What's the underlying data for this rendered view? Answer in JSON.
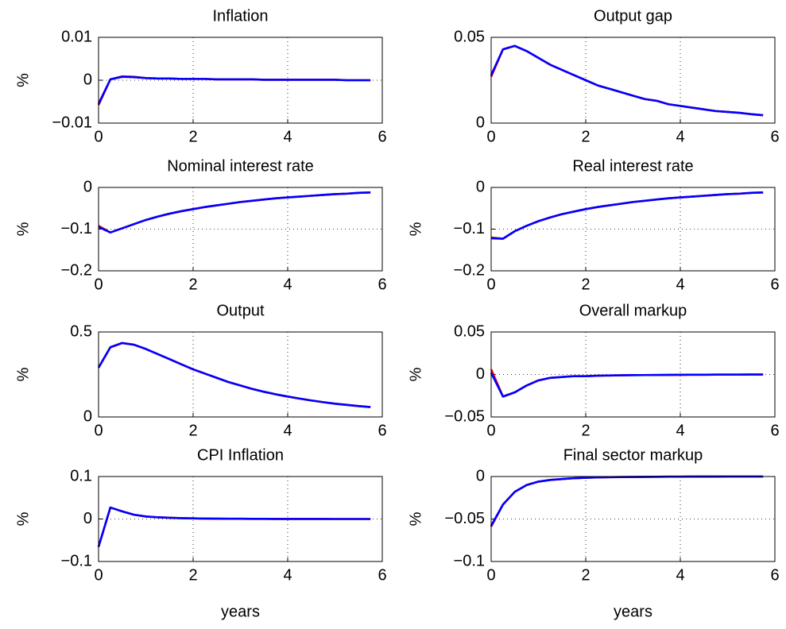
{
  "chart_data": [
    {
      "type": "line",
      "title": "Inflation",
      "ylabel": "%",
      "x": [
        0,
        0.25,
        0.5,
        0.75,
        1,
        1.25,
        1.5,
        1.75,
        2,
        2.25,
        2.5,
        2.75,
        3,
        3.25,
        3.5,
        3.75,
        4,
        4.25,
        4.5,
        4.75,
        5,
        5.25,
        5.5,
        5.75
      ],
      "series": [
        {
          "color": "#ff0000",
          "values": [
            -0.0058,
            0.0002,
            0.0009,
            0.0008,
            0.0005,
            0.0004,
            0.0004,
            0.0003,
            0.0003,
            0.0003,
            0.0002,
            0.0002,
            0.0002,
            0.0002,
            0.0001,
            0.0001,
            0.0001,
            0.0001,
            0.0001,
            0.0001,
            0.0001,
            0,
            0,
            0
          ]
        },
        {
          "color": "#0000ff",
          "values": [
            -0.0055,
            0.0002,
            0.0008,
            0.0007,
            0.0005,
            0.0004,
            0.0004,
            0.0003,
            0.0003,
            0.0003,
            0.0002,
            0.0002,
            0.0002,
            0.0002,
            0.0001,
            0.0001,
            0.0001,
            0.0001,
            0.0001,
            0.0001,
            0.0001,
            0,
            0,
            0
          ]
        }
      ],
      "xlim": [
        0,
        6
      ],
      "xticks": [
        0,
        2,
        4,
        6
      ],
      "ylim": [
        -0.01,
        0.01
      ],
      "yticks": [
        {
          "value": -0.01,
          "label": "−0.01"
        },
        0,
        0.01
      ],
      "grid": true
    },
    {
      "type": "line",
      "title": "Output gap",
      "ylabel": "",
      "x": [
        0,
        0.25,
        0.5,
        0.75,
        1,
        1.25,
        1.5,
        1.75,
        2,
        2.25,
        2.5,
        2.75,
        3,
        3.25,
        3.5,
        3.75,
        4,
        4.25,
        4.5,
        4.75,
        5,
        5.25,
        5.5,
        5.75
      ],
      "series": [
        {
          "color": "#ff0000",
          "values": [
            0.027,
            0.043,
            0.045,
            0.042,
            0.038,
            0.034,
            0.031,
            0.028,
            0.025,
            0.022,
            0.02,
            0.018,
            0.016,
            0.014,
            0.013,
            0.011,
            0.01,
            0.009,
            0.008,
            0.007,
            0.0065,
            0.006,
            0.0052,
            0.0046
          ]
        },
        {
          "color": "#0000ff",
          "values": [
            0.028,
            0.043,
            0.045,
            0.042,
            0.038,
            0.034,
            0.031,
            0.028,
            0.025,
            0.022,
            0.02,
            0.018,
            0.016,
            0.014,
            0.013,
            0.011,
            0.01,
            0.009,
            0.008,
            0.007,
            0.0065,
            0.006,
            0.0052,
            0.0046
          ]
        }
      ],
      "xlim": [
        0,
        6
      ],
      "xticks": [
        0,
        2,
        4,
        6
      ],
      "ylim": [
        0,
        0.05
      ],
      "yticks": [
        0,
        0.05
      ],
      "grid": true
    },
    {
      "type": "line",
      "title": "Nominal interest rate",
      "ylabel": "%",
      "x": [
        0,
        0.25,
        0.5,
        0.75,
        1,
        1.25,
        1.5,
        1.75,
        2,
        2.25,
        2.5,
        2.75,
        3,
        3.25,
        3.5,
        3.75,
        4,
        4.25,
        4.5,
        4.75,
        5,
        5.25,
        5.5,
        5.75
      ],
      "series": [
        {
          "color": "#ff0000",
          "values": [
            -0.092,
            -0.108,
            -0.098,
            -0.088,
            -0.078,
            -0.07,
            -0.063,
            -0.057,
            -0.052,
            -0.047,
            -0.043,
            -0.039,
            -0.035,
            -0.032,
            -0.029,
            -0.026,
            -0.024,
            -0.022,
            -0.02,
            -0.018,
            -0.016,
            -0.015,
            -0.013,
            -0.012
          ]
        },
        {
          "color": "#0000ff",
          "values": [
            -0.095,
            -0.108,
            -0.098,
            -0.088,
            -0.078,
            -0.07,
            -0.063,
            -0.057,
            -0.052,
            -0.047,
            -0.043,
            -0.039,
            -0.035,
            -0.032,
            -0.029,
            -0.026,
            -0.024,
            -0.022,
            -0.02,
            -0.018,
            -0.016,
            -0.015,
            -0.013,
            -0.012
          ]
        }
      ],
      "xlim": [
        0,
        6
      ],
      "xticks": [
        0,
        2,
        4,
        6
      ],
      "ylim": [
        -0.2,
        0
      ],
      "yticks": [
        {
          "value": -0.2,
          "label": "−0.2"
        },
        {
          "value": -0.1,
          "label": "−0.1"
        },
        0
      ],
      "grid": true
    },
    {
      "type": "line",
      "title": "Real interest rate",
      "ylabel": "%",
      "x": [
        0,
        0.25,
        0.5,
        0.75,
        1,
        1.25,
        1.5,
        1.75,
        2,
        2.25,
        2.5,
        2.75,
        3,
        3.25,
        3.5,
        3.75,
        4,
        4.25,
        4.5,
        4.75,
        5,
        5.25,
        5.5,
        5.75
      ],
      "series": [
        {
          "color": "#ff0000",
          "values": [
            -0.12,
            -0.123,
            -0.105,
            -0.092,
            -0.081,
            -0.072,
            -0.064,
            -0.058,
            -0.052,
            -0.047,
            -0.043,
            -0.039,
            -0.035,
            -0.032,
            -0.029,
            -0.026,
            -0.024,
            -0.022,
            -0.02,
            -0.018,
            -0.016,
            -0.015,
            -0.013,
            -0.012
          ]
        },
        {
          "color": "#0000ff",
          "values": [
            -0.122,
            -0.123,
            -0.105,
            -0.092,
            -0.081,
            -0.072,
            -0.064,
            -0.058,
            -0.052,
            -0.047,
            -0.043,
            -0.039,
            -0.035,
            -0.032,
            -0.029,
            -0.026,
            -0.024,
            -0.022,
            -0.02,
            -0.018,
            -0.016,
            -0.015,
            -0.013,
            -0.012
          ]
        }
      ],
      "xlim": [
        0,
        6
      ],
      "xticks": [
        0,
        2,
        4,
        6
      ],
      "ylim": [
        -0.2,
        0
      ],
      "yticks": [
        {
          "value": -0.2,
          "label": "−0.2"
        },
        {
          "value": -0.1,
          "label": "−0.1"
        },
        0
      ],
      "grid": true
    },
    {
      "type": "line",
      "title": "Output",
      "ylabel": "%",
      "x": [
        0,
        0.25,
        0.5,
        0.75,
        1,
        1.25,
        1.5,
        1.75,
        2,
        2.25,
        2.5,
        2.75,
        3,
        3.25,
        3.5,
        3.75,
        4,
        4.25,
        4.5,
        4.75,
        5,
        5.25,
        5.5,
        5.75
      ],
      "series": [
        {
          "color": "#ff0000",
          "values": [
            0.29,
            0.41,
            0.435,
            0.425,
            0.4,
            0.37,
            0.34,
            0.31,
            0.28,
            0.255,
            0.23,
            0.205,
            0.185,
            0.165,
            0.148,
            0.133,
            0.12,
            0.108,
            0.097,
            0.087,
            0.078,
            0.071,
            0.064,
            0.058
          ]
        },
        {
          "color": "#0000ff",
          "values": [
            0.29,
            0.41,
            0.435,
            0.425,
            0.4,
            0.37,
            0.34,
            0.31,
            0.28,
            0.255,
            0.23,
            0.205,
            0.185,
            0.165,
            0.148,
            0.133,
            0.12,
            0.108,
            0.097,
            0.087,
            0.078,
            0.071,
            0.064,
            0.058
          ]
        }
      ],
      "xlim": [
        0,
        6
      ],
      "xticks": [
        0,
        2,
        4,
        6
      ],
      "ylim": [
        0,
        0.5
      ],
      "yticks": [
        0,
        0.5
      ],
      "grid": true
    },
    {
      "type": "line",
      "title": "Overall markup",
      "ylabel": "%",
      "x": [
        0,
        0.25,
        0.5,
        0.75,
        1,
        1.25,
        1.5,
        1.75,
        2,
        2.25,
        2.5,
        2.75,
        3,
        3.25,
        3.5,
        3.75,
        4,
        4.25,
        4.5,
        4.75,
        5,
        5.25,
        5.5,
        5.75
      ],
      "series": [
        {
          "color": "#ff0000",
          "values": [
            0.006,
            -0.026,
            -0.021,
            -0.013,
            -0.007,
            -0.004,
            -0.003,
            -0.002,
            -0.002,
            -0.0015,
            -0.0012,
            -0.001,
            -0.0008,
            -0.0007,
            -0.0006,
            -0.0005,
            -0.0004,
            -0.0003,
            -0.0003,
            -0.0002,
            -0.0002,
            -0.0002,
            -0.0001,
            -0.0001
          ]
        },
        {
          "color": "#0000ff",
          "values": [
            0.002,
            -0.026,
            -0.021,
            -0.013,
            -0.007,
            -0.004,
            -0.003,
            -0.002,
            -0.002,
            -0.0015,
            -0.0012,
            -0.001,
            -0.0008,
            -0.0007,
            -0.0006,
            -0.0005,
            -0.0004,
            -0.0003,
            -0.0003,
            -0.0002,
            -0.0002,
            -0.0002,
            -0.0001,
            -0.0001
          ]
        }
      ],
      "xlim": [
        0,
        6
      ],
      "xticks": [
        0,
        2,
        4,
        6
      ],
      "ylim": [
        -0.05,
        0.05
      ],
      "yticks": [
        {
          "value": -0.05,
          "label": "−0.05"
        },
        0,
        0.05
      ],
      "grid": true
    },
    {
      "type": "line",
      "title": "CPI Inflation",
      "ylabel": "%",
      "xlabel": "years",
      "x": [
        0,
        0.25,
        0.5,
        0.75,
        1,
        1.25,
        1.5,
        1.75,
        2,
        2.25,
        2.5,
        2.75,
        3,
        3.25,
        3.5,
        3.75,
        4,
        4.25,
        4.5,
        4.75,
        5,
        5.25,
        5.5,
        5.75
      ],
      "series": [
        {
          "color": "#ff0000",
          "values": [
            -0.066,
            0.027,
            0.018,
            0.01,
            0.006,
            0.004,
            0.003,
            0.002,
            0.0015,
            0.001,
            0.0008,
            0.0006,
            0.0005,
            0.0004,
            0.0003,
            0.0002,
            0.0002,
            0.0001,
            0.0001,
            0.0001,
            0,
            0,
            0,
            0
          ]
        },
        {
          "color": "#0000ff",
          "values": [
            -0.065,
            0.027,
            0.018,
            0.01,
            0.006,
            0.004,
            0.003,
            0.002,
            0.0015,
            0.001,
            0.0008,
            0.0006,
            0.0005,
            0.0004,
            0.0003,
            0.0002,
            0.0002,
            0.0001,
            0.0001,
            0.0001,
            0,
            0,
            0,
            0
          ]
        }
      ],
      "xlim": [
        0,
        6
      ],
      "xticks": [
        0,
        2,
        4,
        6
      ],
      "ylim": [
        -0.1,
        0.1
      ],
      "yticks": [
        {
          "value": -0.1,
          "label": "−0.1"
        },
        0,
        0.1
      ],
      "grid": true
    },
    {
      "type": "line",
      "title": "Final sector markup",
      "ylabel": "%",
      "xlabel": "years",
      "x": [
        0,
        0.25,
        0.5,
        0.75,
        1,
        1.25,
        1.5,
        1.75,
        2,
        2.25,
        2.5,
        2.75,
        3,
        3.25,
        3.5,
        3.75,
        4,
        4.25,
        4.5,
        4.75,
        5,
        5.25,
        5.5,
        5.75
      ],
      "series": [
        {
          "color": "#ff0000",
          "values": [
            -0.059,
            -0.033,
            -0.018,
            -0.01,
            -0.006,
            -0.004,
            -0.003,
            -0.002,
            -0.0015,
            -0.001,
            -0.0008,
            -0.0006,
            -0.0005,
            -0.0004,
            -0.0003,
            -0.0002,
            -0.0002,
            -0.0001,
            -0.0001,
            -0.0001,
            0,
            0,
            0,
            0
          ]
        },
        {
          "color": "#0000ff",
          "values": [
            -0.058,
            -0.033,
            -0.018,
            -0.01,
            -0.006,
            -0.004,
            -0.003,
            -0.002,
            -0.0015,
            -0.001,
            -0.0008,
            -0.0006,
            -0.0005,
            -0.0004,
            -0.0003,
            -0.0002,
            -0.0002,
            -0.0001,
            -0.0001,
            -0.0001,
            0,
            0,
            0,
            0
          ]
        }
      ],
      "xlim": [
        0,
        6
      ],
      "xticks": [
        0,
        2,
        4,
        6
      ],
      "ylim": [
        -0.1,
        0
      ],
      "yticks": [
        {
          "value": -0.1,
          "label": "−0.1"
        },
        {
          "value": -0.05,
          "label": "−0.05"
        },
        0
      ],
      "grid": true
    }
  ]
}
